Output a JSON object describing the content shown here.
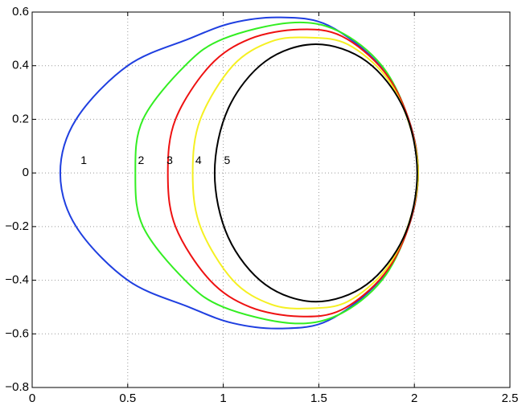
{
  "chart_data": {
    "type": "line",
    "series": [
      {
        "name": "1",
        "color": "#1f3fe0",
        "x": [
          0.147,
          0.23,
          0.5,
          0.82,
          1.05,
          1.3,
          1.55,
          1.82,
          1.97,
          2.02,
          1.97,
          1.82,
          1.55,
          1.3,
          1.05,
          0.82,
          0.5,
          0.23
        ],
        "values": [
          0,
          0.2,
          0.4,
          0.5,
          0.56,
          0.58,
          0.55,
          0.4,
          0.2,
          0,
          -0.2,
          -0.4,
          -0.55,
          -0.58,
          -0.56,
          -0.5,
          -0.4,
          -0.2
        ]
      },
      {
        "name": "2",
        "color": "#33ee22",
        "x": [
          0.54,
          0.58,
          0.8,
          1.0,
          1.35,
          1.6,
          1.83,
          1.97,
          2.02,
          1.97,
          1.83,
          1.6,
          1.35,
          1.0,
          0.8,
          0.58
        ],
        "values": [
          0,
          0.2,
          0.4,
          0.5,
          0.56,
          0.53,
          0.4,
          0.2,
          0,
          -0.2,
          -0.4,
          -0.53,
          -0.56,
          -0.5,
          -0.4,
          -0.2
        ]
      },
      {
        "name": "3",
        "color": "#ee1111",
        "x": [
          0.71,
          0.75,
          0.93,
          1.14,
          1.4,
          1.62,
          1.84,
          1.97,
          2.02,
          1.97,
          1.84,
          1.62,
          1.4,
          1.14,
          0.93,
          0.75
        ],
        "values": [
          0,
          0.2,
          0.4,
          0.5,
          0.535,
          0.51,
          0.38,
          0.2,
          0,
          -0.2,
          -0.38,
          -0.51,
          -0.535,
          -0.5,
          -0.4,
          -0.2
        ]
      },
      {
        "name": "4",
        "color": "#f5f022",
        "x": [
          0.84,
          0.88,
          1.05,
          1.25,
          1.45,
          1.65,
          1.85,
          1.97,
          2.02,
          1.97,
          1.85,
          1.65,
          1.45,
          1.25,
          1.05,
          0.88
        ],
        "values": [
          0,
          0.2,
          0.4,
          0.49,
          0.505,
          0.48,
          0.36,
          0.19,
          0,
          -0.19,
          -0.36,
          -0.48,
          -0.505,
          -0.49,
          -0.4,
          -0.2
        ]
      },
      {
        "name": "5",
        "color": "#000000",
        "x": [
          0.955,
          1.026,
          1.22,
          1.485,
          1.75,
          1.944,
          2.015,
          1.944,
          1.75,
          1.485,
          1.22,
          1.026
        ],
        "values": [
          0,
          0.24,
          0.416,
          0.48,
          0.416,
          0.24,
          0,
          -0.24,
          -0.416,
          -0.48,
          -0.416,
          -0.24
        ]
      }
    ],
    "annotations": [
      {
        "text": "1",
        "x": 0.27,
        "y": 0.045
      },
      {
        "text": "2",
        "x": 0.57,
        "y": 0.045
      },
      {
        "text": "3",
        "x": 0.72,
        "y": 0.045
      },
      {
        "text": "4",
        "x": 0.87,
        "y": 0.045
      },
      {
        "text": "5",
        "x": 1.02,
        "y": 0.045
      }
    ],
    "xlim": [
      0,
      2.5
    ],
    "xticks": [
      0,
      0.5,
      1,
      1.5,
      2,
      2.5
    ],
    "ylim": [
      -0.8,
      0.6
    ],
    "yticks": [
      {
        "value": -0.8,
        "label": "−0.8"
      },
      {
        "value": -0.6,
        "label": "−0.6"
      },
      {
        "value": -0.4,
        "label": "−0.4"
      },
      {
        "value": -0.2,
        "label": "−0.2"
      },
      0,
      0.2,
      0.4,
      0.6
    ],
    "grid": true
  }
}
